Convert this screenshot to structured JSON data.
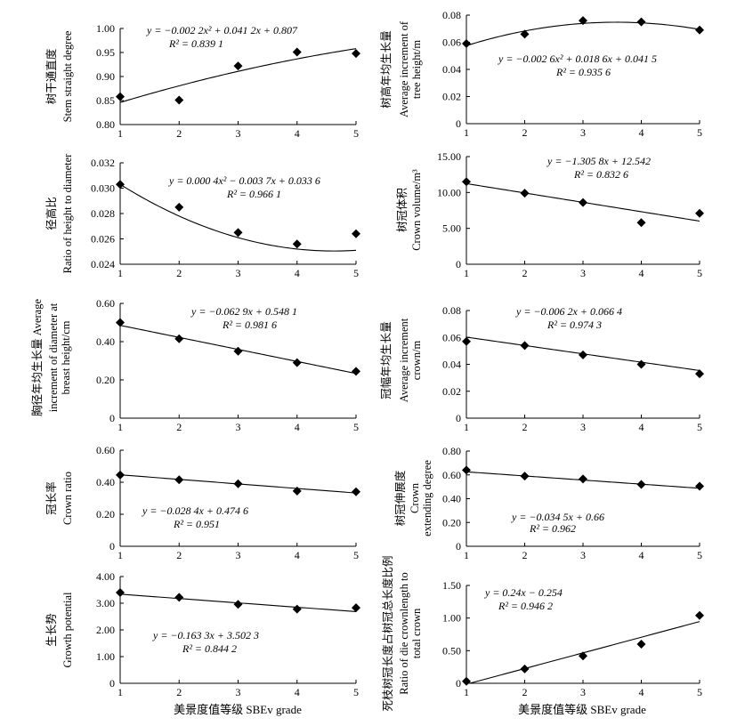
{
  "figure": {
    "xlabel_left": "美景度值等级 SBEv grade",
    "xlabel_right": "美景度值等级 SBEv grade",
    "x_categories": [
      "1",
      "2",
      "3",
      "4",
      "5"
    ]
  },
  "chart_data": [
    {
      "type": "scatter",
      "fit": "quadratic",
      "ylabel_cn": "树干通直度",
      "ylabel_en": [
        "Stem straight degree"
      ],
      "yticks": [
        "0.80",
        "0.85",
        "0.90",
        "0.95",
        "1.00"
      ],
      "ylim": [
        0.8,
        1.0
      ],
      "x": [
        1,
        2,
        3,
        4,
        5
      ],
      "values": [
        0.858,
        0.851,
        0.922,
        0.951,
        0.948
      ],
      "coef": [
        -0.0022,
        0.0412,
        0.807
      ],
      "equation": "y = −0.002 2x² + 0.041 2x + 0.807",
      "r2": "R² = 0.839 1"
    },
    {
      "type": "scatter",
      "fit": "quadratic",
      "ylabel_cn": "树高年均生长量",
      "ylabel_en": [
        "Average increment of",
        "tree height/m"
      ],
      "yticks": [
        "0",
        "0.02",
        "0.04",
        "0.06",
        "0.08"
      ],
      "ylim": [
        0,
        0.08
      ],
      "x": [
        1,
        2,
        3,
        4,
        5
      ],
      "values": [
        0.059,
        0.066,
        0.076,
        0.075,
        0.069
      ],
      "coef": [
        -0.0026,
        0.0186,
        0.0415
      ],
      "equation": "y = −0.002 6x² + 0.018 6x + 0.041 5",
      "r2": "R² = 0.935 6"
    },
    {
      "type": "scatter",
      "fit": "quadratic",
      "ylabel_cn": "径高比",
      "ylabel_en": [
        "Ratio of height to diameter"
      ],
      "yticks": [
        "0.024",
        "0.026",
        "0.028",
        "0.030",
        "0.032"
      ],
      "ylim": [
        0.024,
        0.032
      ],
      "x": [
        1,
        2,
        3,
        4,
        5
      ],
      "values": [
        0.0303,
        0.0285,
        0.0265,
        0.0256,
        0.0264
      ],
      "coef": [
        0.0004,
        -0.0037,
        0.0336
      ],
      "equation": "y = 0.000 4x² − 0.003 7x + 0.033 6",
      "r2": "R² = 0.966 1"
    },
    {
      "type": "scatter",
      "fit": "linear",
      "ylabel_cn": "树冠体积",
      "ylabel_en": [
        "Crown volume/m³"
      ],
      "yticks": [
        "0",
        "5.00",
        "10.00",
        "15.00"
      ],
      "ylim": [
        0,
        15
      ],
      "x": [
        1,
        2,
        3,
        4,
        5
      ],
      "values": [
        11.5,
        9.9,
        8.6,
        5.8,
        7.1
      ],
      "coef": [
        -1.3058,
        12.542
      ],
      "equation": "y = −1.305 8x + 12.542",
      "r2": "R² = 0.832 6"
    },
    {
      "type": "scatter",
      "fit": "linear",
      "ylabel_cn": "胸径年均生长量 Average",
      "ylabel_en": [
        "increment of diameter at",
        "breast height/cm"
      ],
      "yticks": [
        "0",
        "0.20",
        "0.40",
        "0.60"
      ],
      "ylim": [
        0,
        0.6
      ],
      "x": [
        1,
        2,
        3,
        4,
        5
      ],
      "values": [
        0.5,
        0.415,
        0.35,
        0.29,
        0.245
      ],
      "coef": [
        -0.0629,
        0.5481
      ],
      "equation": "y = −0.062 9x + 0.548 1",
      "r2": "R² = 0.981 6"
    },
    {
      "type": "scatter",
      "fit": "linear",
      "ylabel_cn": "冠幅年均生长量",
      "ylabel_en": [
        "Average increment",
        "crown/m"
      ],
      "yticks": [
        "0",
        "0.02",
        "0.04",
        "0.06",
        "0.08"
      ],
      "ylim": [
        0,
        0.08
      ],
      "x": [
        1,
        2,
        3,
        4,
        5
      ],
      "values": [
        0.057,
        0.054,
        0.047,
        0.04,
        0.033
      ],
      "coef": [
        -0.0062,
        0.0664
      ],
      "equation": "y = −0.006 2x + 0.066 4",
      "r2": "R² = 0.974 3"
    },
    {
      "type": "scatter",
      "fit": "linear",
      "ylabel_cn": "冠长率",
      "ylabel_en": [
        "Crown ratio"
      ],
      "yticks": [
        "0",
        "0.20",
        "0.40",
        "0.60"
      ],
      "ylim": [
        0,
        0.6
      ],
      "x": [
        1,
        2,
        3,
        4,
        5
      ],
      "values": [
        0.445,
        0.415,
        0.39,
        0.345,
        0.34
      ],
      "coef": [
        -0.0284,
        0.4746
      ],
      "equation": "y = −0.028 4x + 0.474 6",
      "r2": "R² = 0.951"
    },
    {
      "type": "scatter",
      "fit": "linear",
      "ylabel_cn": "树冠伸展度",
      "ylabel_en": [
        "Crown",
        "extending degree"
      ],
      "yticks": [
        "0",
        "0.20",
        "0.40",
        "0.60",
        "0.80"
      ],
      "ylim": [
        0,
        0.8
      ],
      "x": [
        1,
        2,
        3,
        4,
        5
      ],
      "values": [
        0.64,
        0.59,
        0.565,
        0.52,
        0.505
      ],
      "coef": [
        -0.0345,
        0.66
      ],
      "equation": "y = −0.034 5x + 0.66",
      "r2": "R² = 0.962"
    },
    {
      "type": "scatter",
      "fit": "linear",
      "ylabel_cn": "生长势",
      "ylabel_en": [
        "Growth potential"
      ],
      "yticks": [
        "0",
        "1.00",
        "2.00",
        "3.00",
        "4.00"
      ],
      "ylim": [
        0,
        4.0
      ],
      "x": [
        1,
        2,
        3,
        4,
        5
      ],
      "values": [
        3.4,
        3.22,
        2.96,
        2.78,
        2.83
      ],
      "coef": [
        -0.1633,
        3.5023
      ],
      "equation": "y = −0.163 3x + 3.502 3",
      "r2": "R² = 0.844 2"
    },
    {
      "type": "scatter",
      "fit": "linear",
      "ylabel_cn": "死枝树冠长度占树冠总长度比例",
      "ylabel_en": [
        "Ratio of die crownlength to",
        "total crown"
      ],
      "yticks": [
        "0",
        "0.50",
        "1.00",
        "1.50"
      ],
      "ylim": [
        0,
        1.5
      ],
      "x": [
        1,
        2,
        3,
        4,
        5
      ],
      "values": [
        0.03,
        0.22,
        0.42,
        0.6,
        1.04
      ],
      "coef": [
        0.24,
        -0.254
      ],
      "equation": "y = 0.24x − 0.254",
      "r2": "R² = 0.946 2"
    }
  ]
}
